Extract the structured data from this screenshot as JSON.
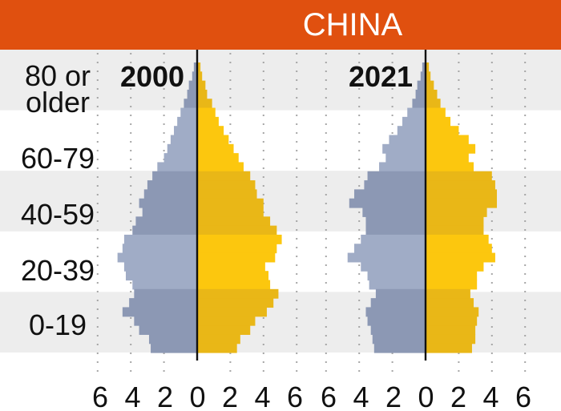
{
  "banner": {
    "title": "CHINA",
    "color": "#e0500f"
  },
  "colors": {
    "male_light": "#a0acc6",
    "male_dark": "#8c98b4",
    "female_light": "#fcc70e",
    "female_dark": "#e9b717",
    "band": "#ededed",
    "dot": "#a6a6a6"
  },
  "chart_data": [
    {
      "type": "bar",
      "orientation": "horizontal-population-pyramid",
      "title": "2000",
      "age_groups": [
        "0-19",
        "20-39",
        "40-59",
        "60-79",
        "80 or older"
      ],
      "age_group_labels": [
        "0-19",
        "20-39",
        "40-59",
        "60-79",
        "80 or",
        "older"
      ],
      "x_ticks": [
        "6",
        "4",
        "2",
        "0",
        "2",
        "4",
        "6"
      ],
      "xlim": [
        -6,
        6
      ],
      "bands_by_single_year_age_from_top": true,
      "series": [
        {
          "name": "",
          "side": "left",
          "values": [
            0.2,
            0.3,
            0.5,
            0.6,
            0.8,
            1.0,
            1.2,
            1.4,
            1.6,
            1.8,
            2.0,
            2.4,
            2.7,
            3.0,
            3.2,
            3.5,
            3.3,
            3.7,
            3.9,
            4.4,
            4.5,
            4.8,
            4.4,
            4.3,
            3.9,
            3.8,
            4.1,
            4.5,
            3.8,
            3.5,
            2.9,
            2.8
          ]
        },
        {
          "name": "",
          "side": "right",
          "values": [
            0.2,
            0.3,
            0.5,
            0.6,
            0.9,
            1.1,
            1.3,
            1.6,
            1.9,
            2.2,
            2.5,
            2.8,
            3.2,
            3.5,
            3.6,
            4.0,
            4.0,
            4.4,
            4.8,
            5.1,
            4.8,
            4.7,
            4.1,
            4.3,
            4.4,
            4.9,
            4.6,
            4.2,
            3.5,
            3.2,
            2.6,
            2.4
          ]
        }
      ]
    },
    {
      "type": "bar",
      "orientation": "horizontal-population-pyramid",
      "title": "2021",
      "age_groups": [
        "0-19",
        "20-39",
        "40-59",
        "60-79",
        "80 or older"
      ],
      "x_ticks": [
        "6",
        "4",
        "2",
        "0",
        "2",
        "4",
        "6"
      ],
      "xlim": [
        -6,
        6
      ],
      "series": [
        {
          "name": "",
          "side": "left",
          "values": [
            0.2,
            0.3,
            0.5,
            0.6,
            0.8,
            1.1,
            1.4,
            1.7,
            2.2,
            2.6,
            2.4,
            2.8,
            3.5,
            3.7,
            4.3,
            4.6,
            3.8,
            3.6,
            3.6,
            3.9,
            4.3,
            4.7,
            3.9,
            3.5,
            3.4,
            3.0,
            3.3,
            3.6,
            3.5,
            3.3,
            3.2,
            3.1
          ]
        },
        {
          "name": "",
          "side": "right",
          "values": [
            0.2,
            0.3,
            0.5,
            0.7,
            0.9,
            1.2,
            1.5,
            2.0,
            2.6,
            3.0,
            2.6,
            2.9,
            4.0,
            4.2,
            4.3,
            4.3,
            3.7,
            3.5,
            3.5,
            3.8,
            4.0,
            4.2,
            3.5,
            3.1,
            3.1,
            2.7,
            2.9,
            3.2,
            3.1,
            3.0,
            3.0,
            2.8
          ]
        }
      ]
    }
  ]
}
